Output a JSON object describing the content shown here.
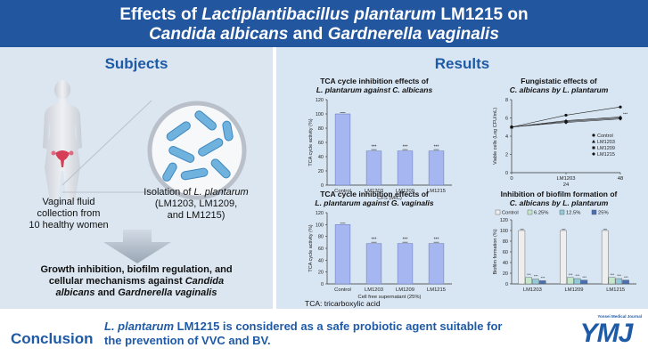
{
  "header": {
    "line1": [
      "Effects of ",
      "Lactiplantibacillus plantarum",
      " LM1215 on"
    ],
    "line2": [
      "Candida albicans",
      " and ",
      "Gardnerella vaginalis"
    ],
    "bg": "#22569e"
  },
  "subjects": {
    "title": "Subjects",
    "vaginal_fluid": [
      "Vaginal fluid",
      "collection from",
      "10 healthy women"
    ],
    "isolation": [
      "Isolation of ",
      "L. plantarum",
      "(LM1203, LM1209,",
      "and LM1215)"
    ],
    "summary": [
      "Growth inhibition, biofilm regulation, and",
      "cellular mechanisms against ",
      "Candida",
      "albicans",
      " and ",
      "Gardnerella vaginalis"
    ]
  },
  "results": {
    "title": "Results",
    "tca_note": "TCA: tricarboxylic acid"
  },
  "chart_data": [
    {
      "type": "bar",
      "title": [
        "TCA cycle inhibition effects of",
        "L. plantarum against C. albicans"
      ],
      "categories": [
        "Control",
        "LM1203",
        "LM1209",
        "LM1215"
      ],
      "values": [
        100,
        48,
        48,
        48
      ],
      "xlabel": "CFS (MIC)",
      "ylabel": "TCA cycle activity (%)",
      "ylim": [
        0,
        120
      ],
      "yticks": [
        0,
        20,
        40,
        60,
        80,
        100,
        120
      ],
      "sig": [
        "",
        "***",
        "***",
        "***"
      ],
      "color": "#a6b6f0"
    },
    {
      "type": "line",
      "title": [
        "Fungistatic effects of",
        "C. albicans by L. plantarum"
      ],
      "x": [
        0,
        24,
        48
      ],
      "xticks": [
        "0",
        "24",
        "48"
      ],
      "xsub": "LM1203",
      "ylabel": "Viable cells (Log CFU/mL)",
      "ylim": [
        0,
        8
      ],
      "yticks": [
        0,
        2,
        4,
        6,
        8
      ],
      "series": [
        {
          "name": "Control",
          "marker": "circle",
          "values": [
            5.0,
            6.3,
            7.2
          ]
        },
        {
          "name": "LM1203",
          "marker": "triangle",
          "values": [
            5.0,
            5.7,
            6.1
          ]
        },
        {
          "name": "LM1209",
          "marker": "square",
          "values": [
            5.0,
            5.6,
            6.0
          ]
        },
        {
          "name": "LM1215",
          "marker": "diamond",
          "values": [
            5.0,
            5.5,
            5.9
          ]
        }
      ],
      "sig": [
        "**",
        "***"
      ]
    },
    {
      "type": "bar",
      "title": [
        "TCA cycle inhibition effects of",
        "L. plantarum against G. vaginalis"
      ],
      "categories": [
        "Control",
        "LM1203",
        "LM1209",
        "LM1215"
      ],
      "values": [
        100,
        68,
        68,
        68
      ],
      "xlabel": "Cell free supernatant (25%)",
      "ylabel": "TCA cycle activity (%)",
      "ylim": [
        0,
        120
      ],
      "yticks": [
        0,
        20,
        40,
        60,
        80,
        100,
        120
      ],
      "sig": [
        "",
        "***",
        "***",
        "***"
      ],
      "color": "#a6b6f0"
    },
    {
      "type": "bar",
      "title": [
        "Inhibition of biofilm formation of",
        "C. albicans by L. plantarum"
      ],
      "categories": [
        "LM1203",
        "LM1209",
        "LM1215"
      ],
      "series": [
        {
          "name": "Control",
          "values": [
            100,
            100,
            100
          ],
          "color": "#eeeeee"
        },
        {
          "name": "6.25%",
          "values": [
            12,
            12,
            12
          ],
          "color": "#c4e7ca"
        },
        {
          "name": "12.5%",
          "values": [
            9,
            10,
            10
          ],
          "color": "#93c9d9"
        },
        {
          "name": "25%",
          "values": [
            6,
            7,
            7
          ],
          "color": "#4a6fb5"
        }
      ],
      "ylabel": "Biofilm formation (%)",
      "ylim": [
        0,
        120
      ],
      "yticks": [
        0,
        20,
        40,
        60,
        80,
        100,
        120
      ],
      "sig": "***"
    }
  ],
  "conclusion": {
    "label": "Conclusion",
    "text1": [
      "L. plantarum",
      " LM1215 is considered as a safe probiotic agent suitable for"
    ],
    "text2": "the prevention of VVC and BV.",
    "journal": "Yonsei Medical Journal",
    "logo": "YMJ",
    "color": "#1f5aa6"
  }
}
